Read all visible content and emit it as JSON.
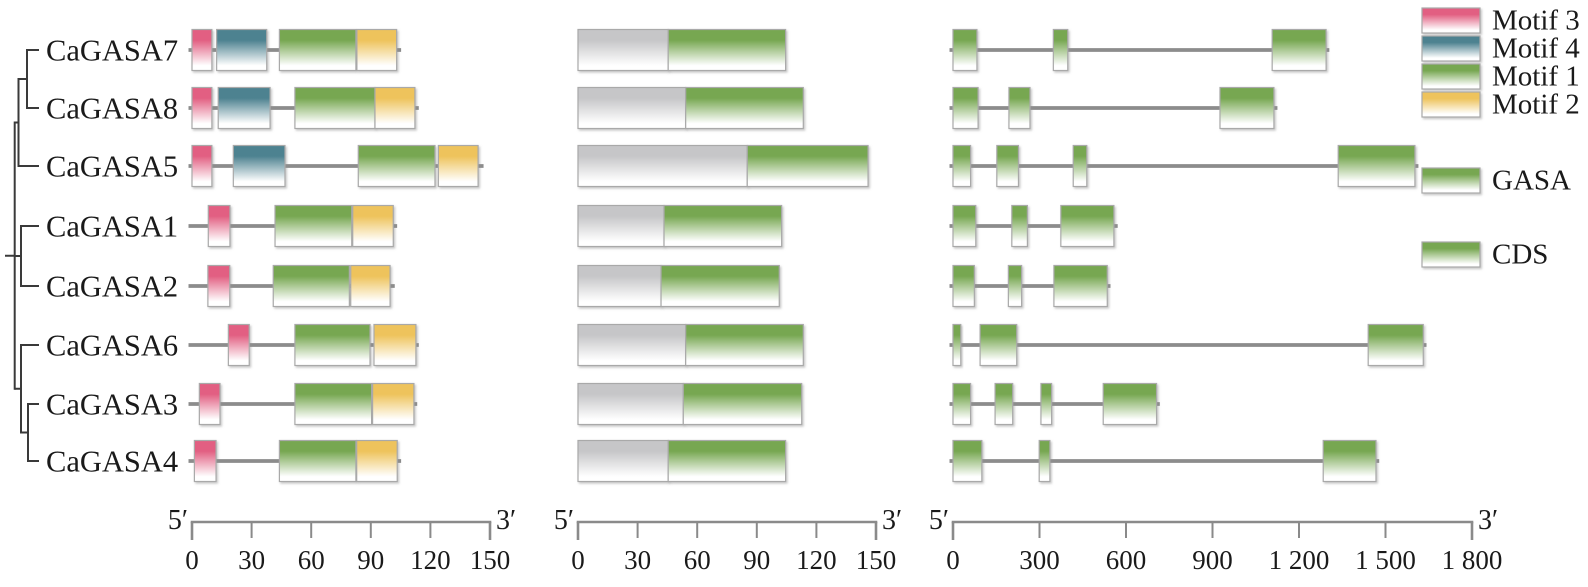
{
  "figure": {
    "genes": [
      {
        "name": "CaGASA7",
        "protein_length": 104.5,
        "motifs": [
          {
            "motif": "motif3",
            "start": 0,
            "end": 10
          },
          {
            "motif": "motif4",
            "start": 12.4,
            "end": 37.6
          },
          {
            "motif": "motif1",
            "start": 44,
            "end": 82.5
          },
          {
            "motif": "motif2",
            "start": 83,
            "end": 103
          }
        ],
        "domain": {
          "length": 104.5,
          "gasa_start": 45.4
        },
        "gene": {
          "length": 1300,
          "exons": [
            [
              0,
              83
            ],
            [
              348,
              398
            ],
            [
              1107,
              1294
            ]
          ]
        }
      },
      {
        "name": "CaGASA8",
        "protein_length": 113.4,
        "motifs": [
          {
            "motif": "motif3",
            "start": 0,
            "end": 10
          },
          {
            "motif": "motif4",
            "start": 13.2,
            "end": 39.3
          },
          {
            "motif": "motif1",
            "start": 51.8,
            "end": 92.1
          },
          {
            "motif": "motif2",
            "start": 92.1,
            "end": 112.2
          }
        ],
        "domain": {
          "length": 113.4,
          "gasa_start": 54.2
        },
        "gene": {
          "length": 1120,
          "exons": [
            [
              0,
              87
            ],
            [
              194,
              267
            ],
            [
              926,
              1113
            ]
          ]
        }
      },
      {
        "name": "CaGASA5",
        "protein_length": 146,
        "motifs": [
          {
            "motif": "motif3",
            "start": 0,
            "end": 10
          },
          {
            "motif": "motif4",
            "start": 20.8,
            "end": 46.8
          },
          {
            "motif": "motif1",
            "start": 83.7,
            "end": 122.3
          },
          {
            "motif": "motif2",
            "start": 124,
            "end": 144
          }
        ],
        "domain": {
          "length": 146,
          "gasa_start": 85.2
        },
        "gene": {
          "length": 1609,
          "exons": [
            [
              0,
              61
            ],
            [
              152,
              227
            ],
            [
              417,
              464
            ],
            [
              1336,
              1602
            ]
          ]
        }
      },
      {
        "name": "CaGASA1",
        "protein_length": 102.5,
        "motifs": [
          {
            "motif": "motif3",
            "start": 8.2,
            "end": 19.1
          },
          {
            "motif": "motif1",
            "start": 41.8,
            "end": 80.4
          },
          {
            "motif": "motif2",
            "start": 80.9,
            "end": 101.3
          }
        ],
        "domain": {
          "length": 102.5,
          "gasa_start": 43.3
        },
        "gene": {
          "length": 566,
          "exons": [
            [
              0,
              79
            ],
            [
              204,
              258
            ],
            [
              374,
              558
            ]
          ]
        }
      },
      {
        "name": "CaGASA2",
        "protein_length": 101.3,
        "motifs": [
          {
            "motif": "motif3",
            "start": 8,
            "end": 19
          },
          {
            "motif": "motif1",
            "start": 40.9,
            "end": 79.2
          },
          {
            "motif": "motif2",
            "start": 79.9,
            "end": 99.7
          }
        ],
        "domain": {
          "length": 101.3,
          "gasa_start": 41.8
        },
        "gene": {
          "length": 541,
          "exons": [
            [
              0,
              74
            ],
            [
              192,
              238
            ],
            [
              350,
              535
            ]
          ]
        }
      },
      {
        "name": "CaGASA6",
        "protein_length": 113.4,
        "motifs": [
          {
            "motif": "motif3",
            "start": 18.3,
            "end": 28.8
          },
          {
            "motif": "motif1",
            "start": 51.8,
            "end": 89.6
          },
          {
            "motif": "motif2",
            "start": 91.6,
            "end": 112.7
          }
        ],
        "domain": {
          "length": 113.4,
          "gasa_start": 54.2
        },
        "gene": {
          "length": 1637,
          "exons": [
            [
              0,
              27
            ],
            [
              94,
              221
            ],
            [
              1440,
              1631
            ]
          ]
        }
      },
      {
        "name": "CaGASA3",
        "protein_length": 112.6,
        "motifs": [
          {
            "motif": "motif3",
            "start": 3.7,
            "end": 14.1
          },
          {
            "motif": "motif1",
            "start": 51.8,
            "end": 90.4
          },
          {
            "motif": "motif2",
            "start": 90.9,
            "end": 111.7
          }
        ],
        "domain": {
          "length": 112.6,
          "gasa_start": 53
        },
        "gene": {
          "length": 712,
          "exons": [
            [
              0,
              61
            ],
            [
              146,
              207
            ],
            [
              305,
              342
            ],
            [
              521,
              706
            ]
          ]
        }
      },
      {
        "name": "CaGASA4",
        "protein_length": 104.5,
        "motifs": [
          {
            "motif": "motif3",
            "start": 1.2,
            "end": 12.1
          },
          {
            "motif": "motif1",
            "start": 44,
            "end": 82.5
          },
          {
            "motif": "motif2",
            "start": 82.9,
            "end": 103.3
          }
        ],
        "domain": {
          "length": 104.5,
          "gasa_start": 45.4
        },
        "gene": {
          "length": 1473,
          "exons": [
            [
              0,
              100
            ],
            [
              299,
              336
            ],
            [
              1284,
              1467
            ]
          ]
        }
      }
    ],
    "tree": {
      "nodes": [
        {
          "id": "A1",
          "x": 27,
          "children": [
            "CaGASA7",
            "CaGASA8"
          ]
        },
        {
          "id": "A",
          "x": 18.5,
          "children": [
            "A1",
            "CaGASA5"
          ]
        },
        {
          "id": "B",
          "x": 21,
          "children": [
            "CaGASA1",
            "CaGASA2"
          ]
        },
        {
          "id": "C1",
          "x": 28,
          "children": [
            "CaGASA3",
            "CaGASA4"
          ]
        },
        {
          "id": "C",
          "x": 21,
          "children": [
            "CaGASA6",
            "C1"
          ]
        },
        {
          "id": "root",
          "x": 14.7,
          "children": [
            "A",
            "B",
            "C"
          ]
        }
      ]
    },
    "axes": {
      "protein_motif": {
        "tick_labels": [
          "0",
          "30",
          "60",
          "90",
          "120",
          "150"
        ],
        "five_prime": "5′",
        "three_prime": "3′"
      },
      "protein_domain": {
        "tick_labels": [
          "0",
          "30",
          "60",
          "90",
          "120",
          "150"
        ],
        "five_prime": "5′",
        "three_prime": "3′"
      },
      "gene": {
        "tick_labels": [
          "0",
          "300",
          "600",
          "900",
          "1 200",
          "1 500",
          "1 800"
        ],
        "five_prime": "5′",
        "three_prime": "3′"
      }
    },
    "legend": {
      "motifs": [
        {
          "key": "motif3",
          "label": "Motif 3"
        },
        {
          "key": "motif4",
          "label": "Motif 4"
        },
        {
          "key": "motif1",
          "label": "Motif 1"
        },
        {
          "key": "motif2",
          "label": "Motif 2"
        }
      ],
      "gasa_label": "GASA",
      "cds_label": "CDS"
    },
    "colors": {
      "motif3": "#e25f82",
      "motif4": "#4d8290",
      "motif1": "#77a751",
      "motif2": "#eec35b",
      "domain_other": "#c6c6c8",
      "line": "#8c8c8c",
      "tree": "#3a3a3a",
      "border": "#a9a9a9",
      "text": "#1a1a1a"
    }
  }
}
